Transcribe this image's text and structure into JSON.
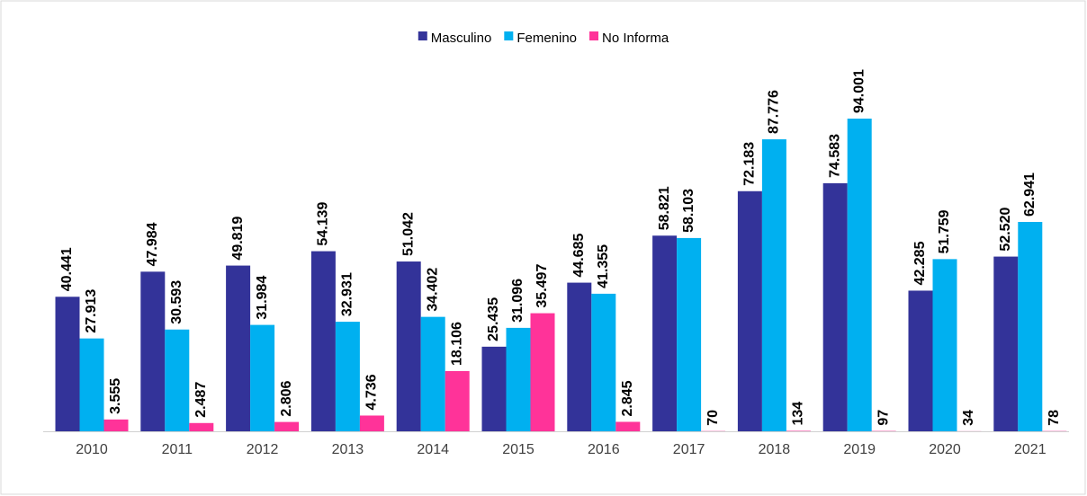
{
  "chart_data": {
    "type": "bar",
    "categories": [
      "2010",
      "2011",
      "2012",
      "2013",
      "2014",
      "2015",
      "2016",
      "2017",
      "2018",
      "2019",
      "2020",
      "2021"
    ],
    "series": [
      {
        "name": "Masculino",
        "color": "#333399",
        "values": [
          40441,
          47984,
          49819,
          54139,
          51042,
          25435,
          44685,
          58821,
          72183,
          74583,
          42285,
          52520
        ],
        "value_labels": [
          "40.441",
          "47.984",
          "49.819",
          "54.139",
          "51.042",
          "25.435",
          "44.685",
          "58.821",
          "72.183",
          "74.583",
          "42.285",
          "52.520"
        ]
      },
      {
        "name": "Femenino",
        "color": "#00b0f0",
        "values": [
          27913,
          30593,
          31984,
          32931,
          34402,
          31096,
          41355,
          58103,
          87776,
          94001,
          51759,
          62941
        ],
        "value_labels": [
          "27.913",
          "30.593",
          "31.984",
          "32.931",
          "34.402",
          "31.096",
          "41.355",
          "58.103",
          "87.776",
          "94.001",
          "51.759",
          "62.941"
        ]
      },
      {
        "name": "No Informa",
        "color": "#ff3399",
        "values": [
          3555,
          2487,
          2806,
          4736,
          18106,
          35497,
          2845,
          70,
          134,
          97,
          34,
          78
        ],
        "value_labels": [
          "3.555",
          "2.487",
          "2.806",
          "4.736",
          "18.106",
          "35.497",
          "2.845",
          "70",
          "134",
          "97",
          "34",
          "78"
        ]
      }
    ],
    "legend": "top"
  }
}
